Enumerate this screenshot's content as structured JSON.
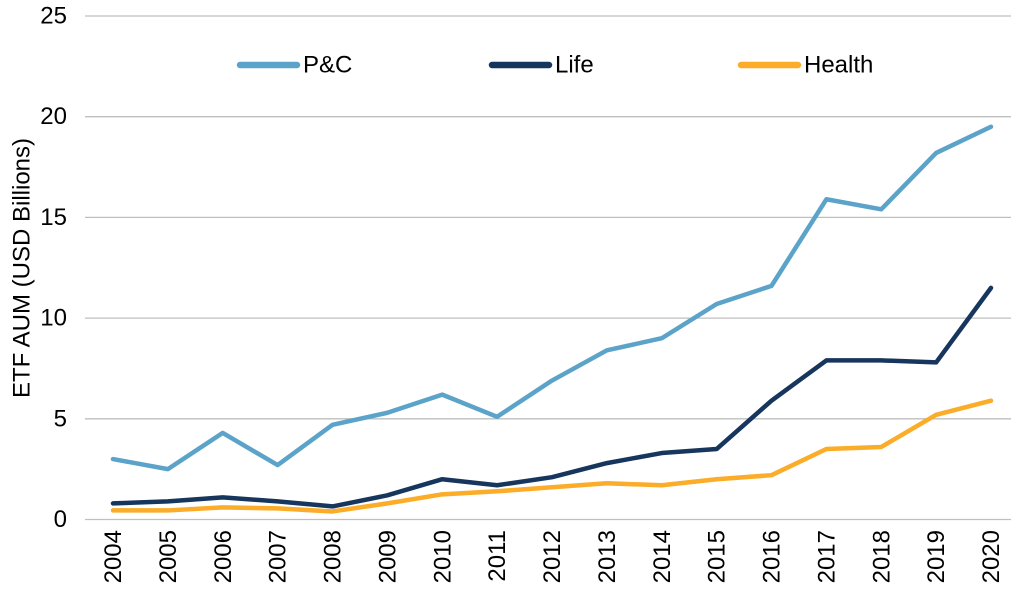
{
  "chart_data": {
    "type": "line",
    "title": "",
    "xlabel": "",
    "ylabel": "ETF AUM (USD Billions)",
    "ylim": [
      0,
      25
    ],
    "yticks": [
      0,
      5,
      10,
      15,
      20,
      25
    ],
    "grid": "horizontal gridlines only, light gray",
    "legend_position": "top, horizontal row inside plot area",
    "x_tick_rotation": -90,
    "categories": [
      "2004",
      "2005",
      "2006",
      "2007",
      "2008",
      "2009",
      "2010",
      "2011",
      "2012",
      "2013",
      "2014",
      "2015",
      "2016",
      "2017",
      "2018",
      "2019",
      "2020"
    ],
    "series": [
      {
        "name": "P&C",
        "color": "#5BA3C9",
        "values": [
          3.0,
          2.5,
          4.3,
          2.7,
          4.7,
          5.3,
          6.2,
          5.1,
          6.9,
          8.4,
          9.0,
          10.7,
          11.6,
          15.9,
          15.4,
          18.2,
          19.5
        ]
      },
      {
        "name": "Life",
        "color": "#17365D",
        "values": [
          0.8,
          0.9,
          1.1,
          0.9,
          0.65,
          1.2,
          2.0,
          1.7,
          2.1,
          2.8,
          3.3,
          3.5,
          5.9,
          7.9,
          7.9,
          7.8,
          11.5
        ]
      },
      {
        "name": "Health",
        "color": "#FBAC28",
        "values": [
          0.45,
          0.45,
          0.6,
          0.55,
          0.4,
          0.8,
          1.25,
          1.4,
          1.6,
          1.8,
          1.7,
          2.0,
          2.2,
          3.5,
          3.6,
          5.2,
          5.9
        ]
      }
    ],
    "colors": {
      "gridline": "#BFBFBF",
      "text": "#000000",
      "background": "#FFFFFF"
    }
  }
}
